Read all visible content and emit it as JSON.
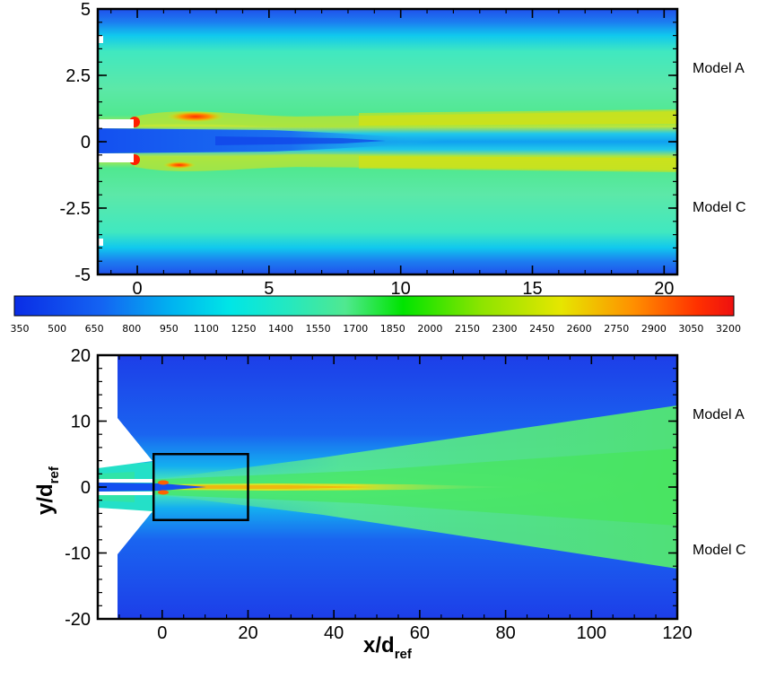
{
  "chart_data": [
    {
      "type": "heatmap",
      "panel": "zoom",
      "xlim": [
        -1.5,
        20.5
      ],
      "ylim": [
        -5,
        5
      ],
      "x_ticks": [
        "0",
        "5",
        "10",
        "15",
        "20"
      ],
      "x_tick_values": [
        0,
        5,
        10,
        15,
        20
      ],
      "y_ticks": [
        "5",
        "2.5",
        "0",
        "-2.5",
        "-5"
      ],
      "y_tick_values": [
        5,
        2.5,
        0,
        -2.5,
        -5
      ],
      "annotations": [
        "Model A",
        "Model C"
      ],
      "xlabel": "",
      "ylabel": ""
    },
    {
      "type": "heatmap",
      "panel": "full",
      "xlim": [
        -15,
        120
      ],
      "ylim": [
        -20,
        20
      ],
      "x_ticks": [
        "0",
        "20",
        "40",
        "60",
        "80",
        "100",
        "120"
      ],
      "x_tick_values": [
        0,
        20,
        40,
        60,
        80,
        100,
        120
      ],
      "y_ticks": [
        "20",
        "10",
        "0",
        "-10",
        "-20"
      ],
      "y_tick_values": [
        20,
        10,
        0,
        -10,
        -20
      ],
      "annotations": [
        "Model A",
        "Model C"
      ],
      "xlabel_main": "x/d",
      "xlabel_sub": "ref",
      "ylabel_main": "y/d",
      "ylabel_sub": "ref",
      "inset_box": {
        "x": [
          -2,
          20
        ],
        "y": [
          -5,
          5
        ]
      }
    }
  ],
  "colorbar": {
    "min": 350,
    "max": 3200,
    "labels": [
      "350",
      "500",
      "650",
      "800",
      "950",
      "1100",
      "1250",
      "1400",
      "1550",
      "1700",
      "1850",
      "2000",
      "2150",
      "2300",
      "2450",
      "2600",
      "2750",
      "2900",
      "3050",
      "3200"
    ],
    "colors": [
      "#0a2de6",
      "#1463f2",
      "#00b4f0",
      "#00e6e6",
      "#24e8c0",
      "#50e890",
      "#00e400",
      "#8ee400",
      "#e6e600",
      "#ff9000",
      "#ff3000",
      "#ee1010"
    ]
  }
}
